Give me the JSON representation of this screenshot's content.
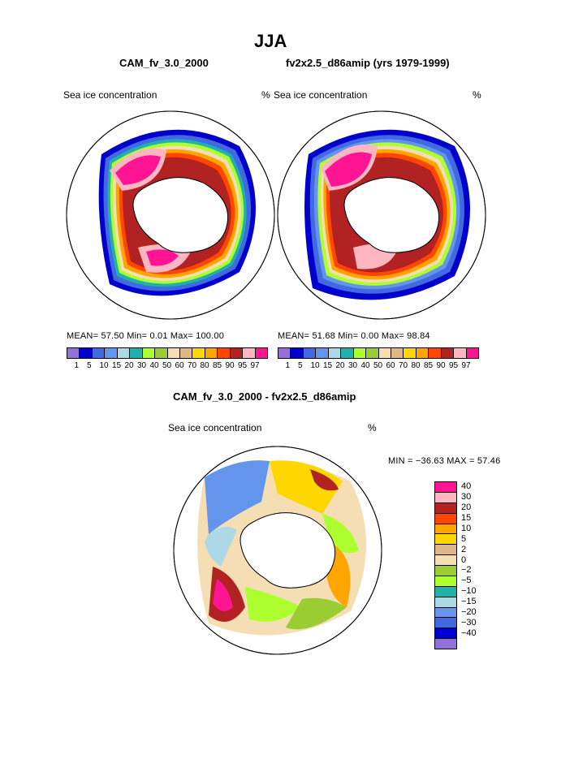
{
  "title": "JJA",
  "panel_left": {
    "model_title": "CAM_fv_3.0_2000",
    "left_label": "Sea ice concentration",
    "units": "%",
    "stats": "MEAN=   57.50   Min=    0.01   Max= 100.00"
  },
  "panel_right": {
    "model_title": "fv2x2.5_d86amip (yrs 1979-1999)",
    "left_label": "Sea ice concentration",
    "units": "%",
    "stats": "MEAN=   51.68   Min=    0.00   Max=  98.84"
  },
  "panel_diff": {
    "model_title": "CAM_fv_3.0_2000 - fv2x2.5_d86amip",
    "left_label": "Sea ice concentration",
    "units": "%",
    "stats": "MIN = −36.63 MAX =   57.46"
  },
  "colorbar_top": {
    "colors": [
      "#9370db",
      "#0000cd",
      "#4169e1",
      "#6495ed",
      "#add8e6",
      "#20b2aa",
      "#adff2f",
      "#9acd32",
      "#f5deb3",
      "#deb887",
      "#ffd700",
      "#ffa500",
      "#ff4500",
      "#b22222",
      "#ffb6c1",
      "#ff1493"
    ],
    "labels": [
      "1",
      "5",
      "10",
      "15",
      "20",
      "30",
      "40",
      "50",
      "60",
      "70",
      "80",
      "85",
      "90",
      "95",
      "97"
    ]
  },
  "colorbar_diff": {
    "colors": [
      "#ff1493",
      "#ffb6c1",
      "#b22222",
      "#ff4500",
      "#ffa500",
      "#ffd700",
      "#deb887",
      "#f5deb3",
      "#9acd32",
      "#adff2f",
      "#20b2aa",
      "#add8e6",
      "#6495ed",
      "#4169e1",
      "#0000cd",
      "#9370db"
    ],
    "labels": [
      "40",
      "30",
      "20",
      "15",
      "10",
      "5",
      "2",
      "0",
      "−2",
      "−5",
      "−10",
      "−15",
      "−20",
      "−30",
      "−40"
    ]
  },
  "chart_data": [
    {
      "type": "polar-stereographic contour map",
      "title": "CAM_fv_3.0_2000",
      "variable": "Sea ice concentration",
      "units": "%",
      "levels": [
        1,
        5,
        10,
        15,
        20,
        30,
        40,
        50,
        60,
        70,
        80,
        85,
        90,
        95,
        97
      ],
      "mean": 57.5,
      "min": 0.01,
      "max": 100.0
    },
    {
      "type": "polar-stereographic contour map",
      "title": "fv2x2.5_d86amip (yrs 1979-1999)",
      "variable": "Sea ice concentration",
      "units": "%",
      "levels": [
        1,
        5,
        10,
        15,
        20,
        30,
        40,
        50,
        60,
        70,
        80,
        85,
        90,
        95,
        97
      ],
      "mean": 51.68,
      "min": 0.0,
      "max": 98.84
    },
    {
      "type": "polar-stereographic contour map (difference)",
      "title": "CAM_fv_3.0_2000 - fv2x2.5_d86amip",
      "variable": "Sea ice concentration",
      "units": "%",
      "levels": [
        -40,
        -30,
        -20,
        -15,
        -10,
        -5,
        -2,
        0,
        2,
        5,
        10,
        15,
        20,
        30,
        40
      ],
      "min": -36.63,
      "max": 57.46
    }
  ]
}
